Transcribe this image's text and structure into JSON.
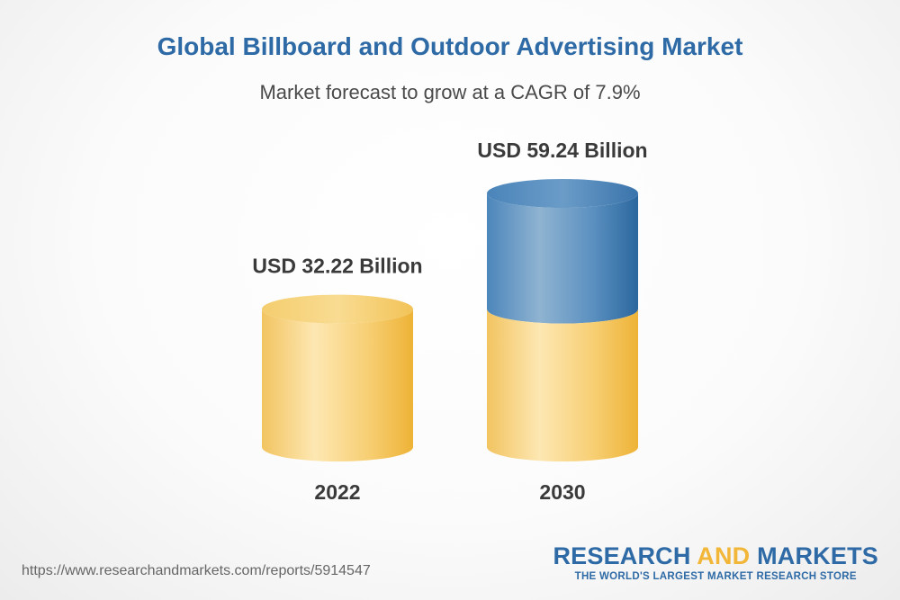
{
  "header": {
    "title": "Global Billboard and Outdoor Advertising Market",
    "subtitle": "Market forecast to grow at a CAGR of 7.9%"
  },
  "chart_data": {
    "type": "bar",
    "style": "3d-cylinder",
    "title": "Global Billboard and Outdoor Advertising Market",
    "subtitle": "Market forecast to grow at a CAGR of 7.9%",
    "categories": [
      "2022",
      "2030"
    ],
    "values": [
      32.22,
      59.24
    ],
    "value_labels": [
      "USD 32.22 Billion",
      "USD 59.24 Billion"
    ],
    "unit": "USD Billion",
    "cagr": "7.9%",
    "xlabel": "",
    "ylabel": "",
    "ylim": [
      0,
      59.24
    ],
    "grid": false,
    "colors": {
      "base": "#f2c04f",
      "growth": "#3f7fb5"
    }
  },
  "footer": {
    "url": "https://www.researchandmarkets.com/reports/5914547",
    "brand_part1": "RESEARCH ",
    "brand_part2": "AND",
    "brand_part3": " MARKETS",
    "tagline": "THE WORLD'S LARGEST MARKET RESEARCH STORE"
  }
}
